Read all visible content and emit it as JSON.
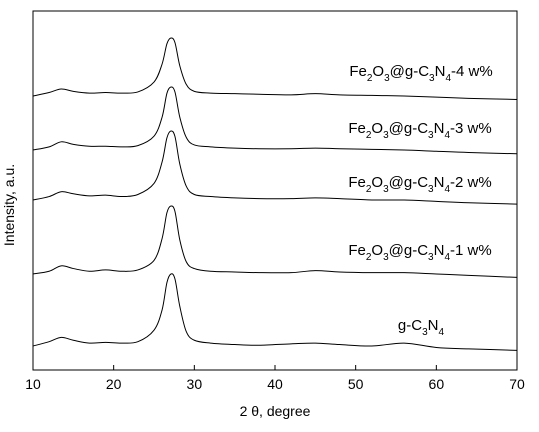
{
  "chart_data": {
    "type": "line",
    "title": "",
    "xlabel": "2 θ, degree",
    "ylabel": "Intensity, a.u.",
    "xlim": [
      10,
      70
    ],
    "ylim": [
      0,
      5
    ],
    "x_ticks": [
      10,
      20,
      30,
      40,
      50,
      60,
      70
    ],
    "y_tick_labels": "none",
    "grid": false,
    "legend": "none; each curve is labeled inline",
    "series": [
      {
        "name": "g-C3N4",
        "label_parts": [
          [
            "g-C",
            false
          ],
          [
            "3",
            true
          ],
          [
            "N",
            false
          ],
          [
            "4",
            true
          ]
        ],
        "offset": 0.0,
        "points": [
          [
            10,
            0.0
          ],
          [
            12,
            0.06
          ],
          [
            13.5,
            0.12
          ],
          [
            15,
            0.08
          ],
          [
            17,
            0.04
          ],
          [
            19,
            0.05
          ],
          [
            21,
            0.04
          ],
          [
            23,
            0.06
          ],
          [
            25,
            0.22
          ],
          [
            26,
            0.5
          ],
          [
            26.6,
            0.88
          ],
          [
            27.1,
            1.0
          ],
          [
            27.6,
            0.93
          ],
          [
            28.2,
            0.55
          ],
          [
            29,
            0.2
          ],
          [
            30,
            0.08
          ],
          [
            32,
            0.04
          ],
          [
            35,
            0.02
          ],
          [
            38,
            0.01
          ],
          [
            42,
            0.03
          ],
          [
            45,
            0.04
          ],
          [
            48,
            0.02
          ],
          [
            52,
            0.0
          ],
          [
            56,
            0.04
          ],
          [
            60,
            -0.02
          ],
          [
            64,
            -0.04
          ],
          [
            70,
            -0.06
          ]
        ]
      },
      {
        "name": "Fe2O3@g-C3N4-1 w%",
        "label_parts": [
          [
            "Fe",
            false
          ],
          [
            "2",
            true
          ],
          [
            "O",
            false
          ],
          [
            "3",
            true
          ],
          [
            "@g-C",
            false
          ],
          [
            "3",
            true
          ],
          [
            "N",
            false
          ],
          [
            "4",
            true
          ],
          [
            "-1 w%",
            false
          ]
        ],
        "offset": 1.0,
        "points": [
          [
            10,
            0.0
          ],
          [
            12,
            0.04
          ],
          [
            13.5,
            0.12
          ],
          [
            15,
            0.08
          ],
          [
            17,
            0.04
          ],
          [
            19,
            0.06
          ],
          [
            21,
            0.04
          ],
          [
            23,
            0.06
          ],
          [
            25,
            0.2
          ],
          [
            26,
            0.52
          ],
          [
            26.6,
            0.9
          ],
          [
            27.1,
            1.0
          ],
          [
            27.6,
            0.92
          ],
          [
            28.2,
            0.5
          ],
          [
            29,
            0.18
          ],
          [
            30,
            0.08
          ],
          [
            32,
            0.04
          ],
          [
            35,
            0.03
          ],
          [
            38,
            0.02
          ],
          [
            42,
            0.02
          ],
          [
            45,
            0.05
          ],
          [
            48,
            0.03
          ],
          [
            52,
            0.02
          ],
          [
            56,
            0.02
          ],
          [
            60,
            0.0
          ],
          [
            64,
            -0.02
          ],
          [
            70,
            -0.05
          ]
        ]
      },
      {
        "name": "Fe2O3@g-C3N4-2 w%",
        "label_parts": [
          [
            "Fe",
            false
          ],
          [
            "2",
            true
          ],
          [
            "O",
            false
          ],
          [
            "3",
            true
          ],
          [
            "@g-C",
            false
          ],
          [
            "3",
            true
          ],
          [
            "N",
            false
          ],
          [
            "4",
            true
          ],
          [
            "-2 w%",
            false
          ]
        ],
        "offset": 2.0,
        "points": [
          [
            10,
            0.0
          ],
          [
            12,
            0.05
          ],
          [
            13.5,
            0.12
          ],
          [
            15,
            0.09
          ],
          [
            17,
            0.06
          ],
          [
            19,
            0.07
          ],
          [
            21,
            0.05
          ],
          [
            23,
            0.08
          ],
          [
            25,
            0.24
          ],
          [
            26,
            0.55
          ],
          [
            26.6,
            0.9
          ],
          [
            27.1,
            1.0
          ],
          [
            27.6,
            0.92
          ],
          [
            28.2,
            0.52
          ],
          [
            29,
            0.2
          ],
          [
            30,
            0.08
          ],
          [
            32,
            0.05
          ],
          [
            35,
            0.03
          ],
          [
            38,
            0.02
          ],
          [
            42,
            0.02
          ],
          [
            45,
            0.03
          ],
          [
            48,
            0.02
          ],
          [
            52,
            0.0
          ],
          [
            56,
            0.0
          ],
          [
            60,
            -0.02
          ],
          [
            64,
            -0.04
          ],
          [
            70,
            -0.06
          ]
        ]
      },
      {
        "name": "Fe2O3@g-C3N4-3 w%",
        "label_parts": [
          [
            "Fe",
            false
          ],
          [
            "2",
            true
          ],
          [
            "O",
            false
          ],
          [
            "3",
            true
          ],
          [
            "@g-C",
            false
          ],
          [
            "3",
            true
          ],
          [
            "N",
            false
          ],
          [
            "4",
            true
          ],
          [
            "-3 w%",
            false
          ]
        ],
        "offset": 3.0,
        "points": [
          [
            10,
            0.0
          ],
          [
            12,
            0.05
          ],
          [
            13.5,
            0.13
          ],
          [
            15,
            0.09
          ],
          [
            17,
            0.06
          ],
          [
            19,
            0.06
          ],
          [
            21,
            0.05
          ],
          [
            23,
            0.07
          ],
          [
            25,
            0.22
          ],
          [
            26,
            0.52
          ],
          [
            26.6,
            0.9
          ],
          [
            27.1,
            1.0
          ],
          [
            27.6,
            0.92
          ],
          [
            28.2,
            0.52
          ],
          [
            29,
            0.2
          ],
          [
            30,
            0.08
          ],
          [
            32,
            0.05
          ],
          [
            35,
            0.03
          ],
          [
            38,
            0.02
          ],
          [
            42,
            0.02
          ],
          [
            45,
            0.03
          ],
          [
            48,
            0.02
          ],
          [
            52,
            0.01
          ],
          [
            56,
            0.0
          ],
          [
            60,
            -0.02
          ],
          [
            64,
            -0.04
          ],
          [
            70,
            -0.06
          ]
        ]
      },
      {
        "name": "Fe2O3@g-C3N4-4 w%",
        "label_parts": [
          [
            "Fe",
            false
          ],
          [
            "2",
            true
          ],
          [
            "O",
            false
          ],
          [
            "3",
            true
          ],
          [
            "@g-C",
            false
          ],
          [
            "3",
            true
          ],
          [
            "N",
            false
          ],
          [
            "4",
            true
          ],
          [
            "-4 w%",
            false
          ]
        ],
        "offset": 4.0,
        "points": [
          [
            10,
            0.0
          ],
          [
            12,
            0.06
          ],
          [
            13.5,
            0.12
          ],
          [
            15,
            0.08
          ],
          [
            17,
            0.05
          ],
          [
            19,
            0.06
          ],
          [
            21,
            0.05
          ],
          [
            23,
            0.07
          ],
          [
            25,
            0.24
          ],
          [
            26,
            0.55
          ],
          [
            26.6,
            0.9
          ],
          [
            27.1,
            1.0
          ],
          [
            27.6,
            0.92
          ],
          [
            28.2,
            0.52
          ],
          [
            29,
            0.2
          ],
          [
            30,
            0.08
          ],
          [
            32,
            0.05
          ],
          [
            35,
            0.04
          ],
          [
            38,
            0.03
          ],
          [
            42,
            0.02
          ],
          [
            45,
            0.04
          ],
          [
            48,
            0.02
          ],
          [
            52,
            0.01
          ],
          [
            56,
            0.0
          ],
          [
            60,
            -0.02
          ],
          [
            64,
            -0.04
          ],
          [
            70,
            -0.06
          ]
        ]
      }
    ]
  }
}
